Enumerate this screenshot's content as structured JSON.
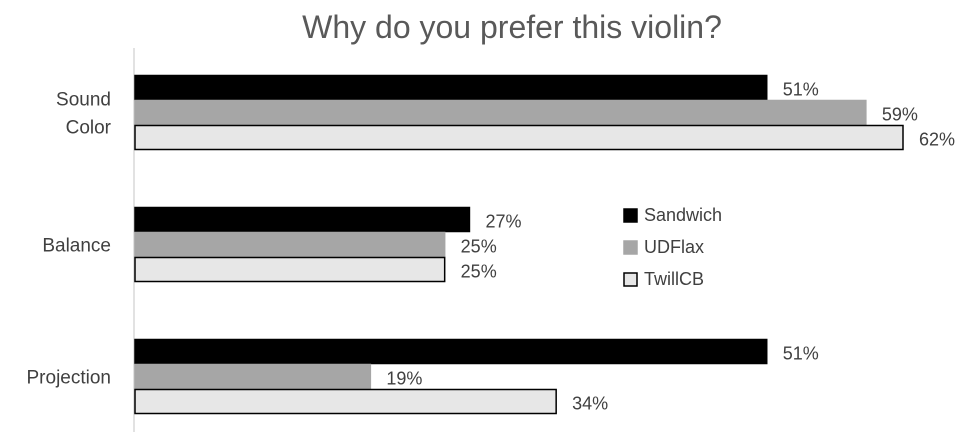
{
  "chart_data": {
    "type": "bar",
    "orientation": "horizontal",
    "title": "Why do you prefer this violin?",
    "categories": [
      "Sound\nColor",
      "Balance",
      "Projection"
    ],
    "series": [
      {
        "name": "Sandwich",
        "values": [
          51,
          27,
          51
        ],
        "color": "#000000",
        "outline": "#000000"
      },
      {
        "name": "UDFlax",
        "values": [
          59,
          25,
          19
        ],
        "color": "#a6a6a6",
        "outline": "#a6a6a6"
      },
      {
        "name": "TwillCB",
        "values": [
          62,
          25,
          34
        ],
        "color": "#e7e7e7",
        "outline": "#000000"
      }
    ],
    "value_suffix": "%",
    "xlim": [
      0,
      62
    ],
    "grid": false,
    "legend_position": "center-right"
  }
}
